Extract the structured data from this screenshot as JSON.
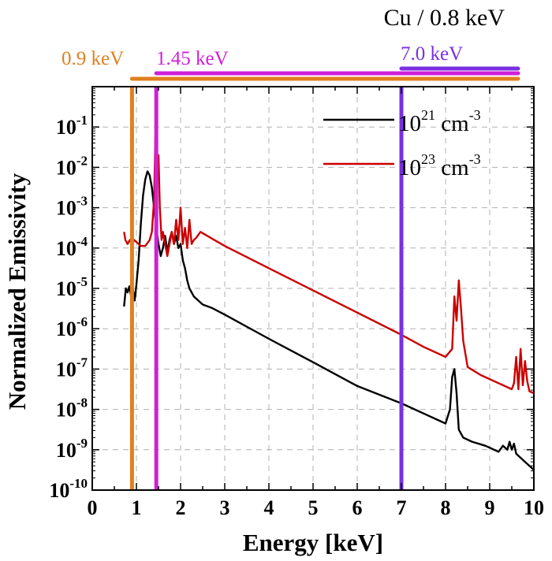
{
  "chart_data": {
    "type": "line",
    "title": "Cu / 0.8 keV",
    "xlabel": "Energy [keV]",
    "ylabel": "Normalized Emissivity",
    "xlim": [
      0,
      10
    ],
    "ylim_log10": [
      -10,
      0
    ],
    "y_scale": "log",
    "grid": true,
    "legend_position": "top-right",
    "x_ticks": [
      "0",
      "1",
      "2",
      "3",
      "4",
      "5",
      "6",
      "7",
      "8",
      "9",
      "10"
    ],
    "y_ticks": [
      {
        "base": "10",
        "exp": "-1"
      },
      {
        "base": "10",
        "exp": "-2"
      },
      {
        "base": "10",
        "exp": "-3"
      },
      {
        "base": "10",
        "exp": "-4"
      },
      {
        "base": "10",
        "exp": "-5"
      },
      {
        "base": "10",
        "exp": "-6"
      },
      {
        "base": "10",
        "exp": "-7"
      },
      {
        "base": "10",
        "exp": "-8"
      },
      {
        "base": "10",
        "exp": "-9"
      },
      {
        "base": "10",
        "exp": "-10"
      }
    ],
    "series": [
      {
        "legend_base": "10",
        "legend_exp": "21",
        "legend_unit": " cm",
        "legend_unit_exp": "-3",
        "color": "#000000",
        "points_log10": [
          [
            0.72,
            -5.45
          ],
          [
            0.76,
            -5.0
          ],
          [
            0.8,
            -5.1
          ],
          [
            0.84,
            -4.95
          ],
          [
            0.88,
            -5.2
          ],
          [
            0.92,
            -5.0
          ],
          [
            0.96,
            -5.3
          ],
          [
            1.0,
            -4.9
          ],
          [
            1.05,
            -4.3
          ],
          [
            1.1,
            -3.4
          ],
          [
            1.15,
            -2.7
          ],
          [
            1.2,
            -2.3
          ],
          [
            1.25,
            -2.1
          ],
          [
            1.3,
            -2.2
          ],
          [
            1.35,
            -2.5
          ],
          [
            1.4,
            -3.0
          ],
          [
            1.45,
            -3.5
          ],
          [
            1.5,
            -3.9
          ],
          [
            1.55,
            -4.2
          ],
          [
            1.6,
            -4.0
          ],
          [
            1.65,
            -3.7
          ],
          [
            1.7,
            -4.1
          ],
          [
            1.75,
            -3.8
          ],
          [
            1.8,
            -3.6
          ],
          [
            1.85,
            -3.9
          ],
          [
            1.9,
            -3.7
          ],
          [
            1.95,
            -4.0
          ],
          [
            2.0,
            -3.9
          ],
          [
            2.05,
            -4.3
          ],
          [
            2.1,
            -4.5
          ],
          [
            2.15,
            -4.8
          ],
          [
            2.2,
            -5.0
          ],
          [
            2.3,
            -5.2
          ],
          [
            2.4,
            -5.3
          ],
          [
            2.5,
            -5.4
          ],
          [
            2.7,
            -5.48
          ],
          [
            3.0,
            -5.65
          ],
          [
            4.0,
            -6.25
          ],
          [
            5.0,
            -6.83
          ],
          [
            6.0,
            -7.42
          ],
          [
            7.0,
            -7.85
          ],
          [
            7.5,
            -8.1
          ],
          [
            8.0,
            -8.35
          ],
          [
            8.1,
            -8.0
          ],
          [
            8.15,
            -7.2
          ],
          [
            8.2,
            -7.0
          ],
          [
            8.25,
            -7.6
          ],
          [
            8.3,
            -8.5
          ],
          [
            8.4,
            -8.7
          ],
          [
            8.6,
            -8.8
          ],
          [
            8.9,
            -8.9
          ],
          [
            9.0,
            -8.95
          ],
          [
            9.2,
            -9.05
          ],
          [
            9.3,
            -8.9
          ],
          [
            9.4,
            -9.0
          ],
          [
            9.45,
            -8.8
          ],
          [
            9.5,
            -9.0
          ],
          [
            9.55,
            -8.85
          ],
          [
            9.6,
            -9.1
          ],
          [
            9.7,
            -9.2
          ],
          [
            9.8,
            -9.3
          ],
          [
            9.9,
            -9.4
          ],
          [
            10.0,
            -9.5
          ]
        ]
      },
      {
        "legend_base": "10",
        "legend_exp": "23",
        "legend_unit": " cm",
        "legend_unit_exp": "-3",
        "color": "#cc0000",
        "points_log10": [
          [
            0.72,
            -3.6
          ],
          [
            0.75,
            -3.8
          ],
          [
            0.8,
            -3.9
          ],
          [
            0.85,
            -3.8
          ],
          [
            0.9,
            -3.9
          ],
          [
            0.95,
            -3.8
          ],
          [
            1.0,
            -3.85
          ],
          [
            1.1,
            -3.95
          ],
          [
            1.2,
            -3.95
          ],
          [
            1.3,
            -3.8
          ],
          [
            1.35,
            -3.6
          ],
          [
            1.4,
            -2.8
          ],
          [
            1.43,
            -1.2
          ],
          [
            1.46,
            -2.5
          ],
          [
            1.5,
            -1.7
          ],
          [
            1.53,
            -3.0
          ],
          [
            1.57,
            -3.8
          ],
          [
            1.6,
            -3.6
          ],
          [
            1.65,
            -3.9
          ],
          [
            1.7,
            -4.2
          ],
          [
            1.75,
            -3.9
          ],
          [
            1.8,
            -3.6
          ],
          [
            1.85,
            -3.9
          ],
          [
            1.9,
            -3.3
          ],
          [
            1.95,
            -3.8
          ],
          [
            2.0,
            -3.0
          ],
          [
            2.05,
            -3.9
          ],
          [
            2.1,
            -3.5
          ],
          [
            2.15,
            -4.0
          ],
          [
            2.2,
            -3.3
          ],
          [
            2.25,
            -3.9
          ],
          [
            2.3,
            -3.8
          ],
          [
            2.35,
            -3.75
          ],
          [
            2.45,
            -3.6
          ],
          [
            3.0,
            -3.95
          ],
          [
            4.0,
            -4.5
          ],
          [
            5.0,
            -5.05
          ],
          [
            6.0,
            -5.6
          ],
          [
            7.0,
            -6.15
          ],
          [
            7.5,
            -6.45
          ],
          [
            8.0,
            -6.7
          ],
          [
            8.15,
            -6.5
          ],
          [
            8.2,
            -5.2
          ],
          [
            8.25,
            -5.8
          ],
          [
            8.3,
            -4.8
          ],
          [
            8.35,
            -5.5
          ],
          [
            8.4,
            -6.3
          ],
          [
            8.5,
            -6.95
          ],
          [
            8.8,
            -7.15
          ],
          [
            9.2,
            -7.35
          ],
          [
            9.5,
            -7.5
          ],
          [
            9.55,
            -7.35
          ],
          [
            9.6,
            -6.7
          ],
          [
            9.65,
            -7.5
          ],
          [
            9.7,
            -6.5
          ],
          [
            9.75,
            -7.4
          ],
          [
            9.8,
            -6.8
          ],
          [
            9.85,
            -7.3
          ],
          [
            9.9,
            -7.55
          ],
          [
            10.0,
            -7.6
          ]
        ]
      }
    ],
    "vlines": [
      {
        "x": 0.9,
        "label": "0.9 keV",
        "color": "#e08020"
      },
      {
        "x": 1.45,
        "label": "1.45 keV",
        "color": "#d020d8"
      },
      {
        "x": 7.0,
        "label": "7.0 keV",
        "color": "#7a30e0"
      }
    ]
  }
}
